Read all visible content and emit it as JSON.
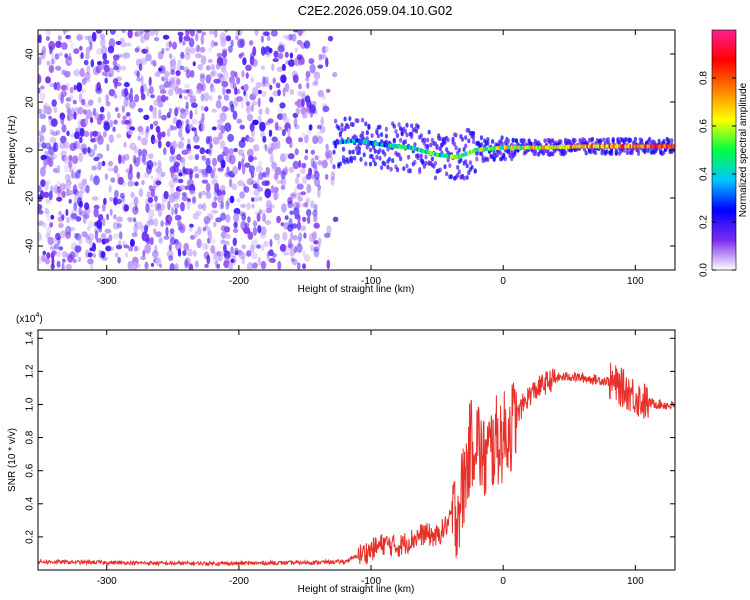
{
  "page": {
    "title": "C2E2.2026.059.04.10.G02"
  },
  "chart_data": [
    {
      "type": "heatmap",
      "title": "C2E2.2026.059.04.10.G02",
      "xlabel": "Height of straight line (km)",
      "ylabel": "Frequency (Hz)",
      "xlim": [
        -352,
        130
      ],
      "ylim": [
        -50,
        50
      ],
      "x_ticks": [
        -300,
        -200,
        -100,
        0,
        100
      ],
      "y_ticks": [
        -40,
        -20,
        0,
        20,
        40
      ],
      "grid": false,
      "colorbar": {
        "label": "Normalized spectral amplitude",
        "range": [
          0.0,
          1.0
        ],
        "ticks": [
          0.0,
          0.2,
          0.4,
          0.6,
          0.8
        ],
        "colors": [
          "#ffffff",
          "#7b2cf0",
          "#0000ff",
          "#00c8ff",
          "#00ff40",
          "#ffff00",
          "#ff8000",
          "#ff0000",
          "#ff2090"
        ]
      },
      "features": [
        {
          "name": "diffuse noise region",
          "x_range": [
            -352,
            -125
          ],
          "freq_range": [
            -50,
            50
          ],
          "amplitude": 0.1
        },
        {
          "name": "signal trace",
          "points": [
            [
              -128,
              3
            ],
            [
              -110,
              4
            ],
            [
              -90,
              2
            ],
            [
              -70,
              1
            ],
            [
              -50,
              -2
            ],
            [
              -35,
              -3
            ],
            [
              -20,
              0
            ],
            [
              0,
              1
            ],
            [
              30,
              1
            ],
            [
              60,
              1.5
            ],
            [
              100,
              1.5
            ],
            [
              130,
              1.5
            ]
          ],
          "amplitude_start": 0.3,
          "amplitude_end": 0.85
        }
      ]
    },
    {
      "type": "line",
      "xlabel": "Height of straight line (km)",
      "ylabel": "SNR (10 * v/v)",
      "y_multiplier": "(x10^4)",
      "xlim": [
        -352,
        130
      ],
      "ylim": [
        0,
        1.45
      ],
      "x_ticks": [
        -300,
        -200,
        -100,
        0,
        100
      ],
      "y_ticks": [
        0.2,
        0.4,
        0.6,
        0.8,
        1.0,
        1.2,
        1.4
      ],
      "color": "#e8302a",
      "series": [
        {
          "x": [
            -352,
            -300,
            -250,
            -200,
            -150,
            -120,
            -100,
            -90,
            -80,
            -70,
            -60,
            -50,
            -40,
            -35,
            -30,
            -25,
            -20,
            -15,
            -10,
            -5,
            0,
            5,
            10,
            15,
            20,
            30,
            40,
            50,
            60,
            70,
            80,
            85,
            90,
            95,
            100,
            105,
            110,
            120,
            130
          ],
          "values": [
            0.05,
            0.045,
            0.04,
            0.04,
            0.045,
            0.05,
            0.12,
            0.16,
            0.14,
            0.18,
            0.22,
            0.2,
            0.3,
            0.35,
            0.5,
            0.75,
            0.82,
            0.65,
            0.72,
            0.78,
            0.8,
            0.85,
            0.92,
            1.0,
            1.06,
            1.12,
            1.16,
            1.17,
            1.16,
            1.15,
            1.14,
            1.12,
            1.1,
            1.08,
            1.05,
            1.02,
            1.01,
            1.0,
            0.99
          ]
        }
      ]
    }
  ]
}
